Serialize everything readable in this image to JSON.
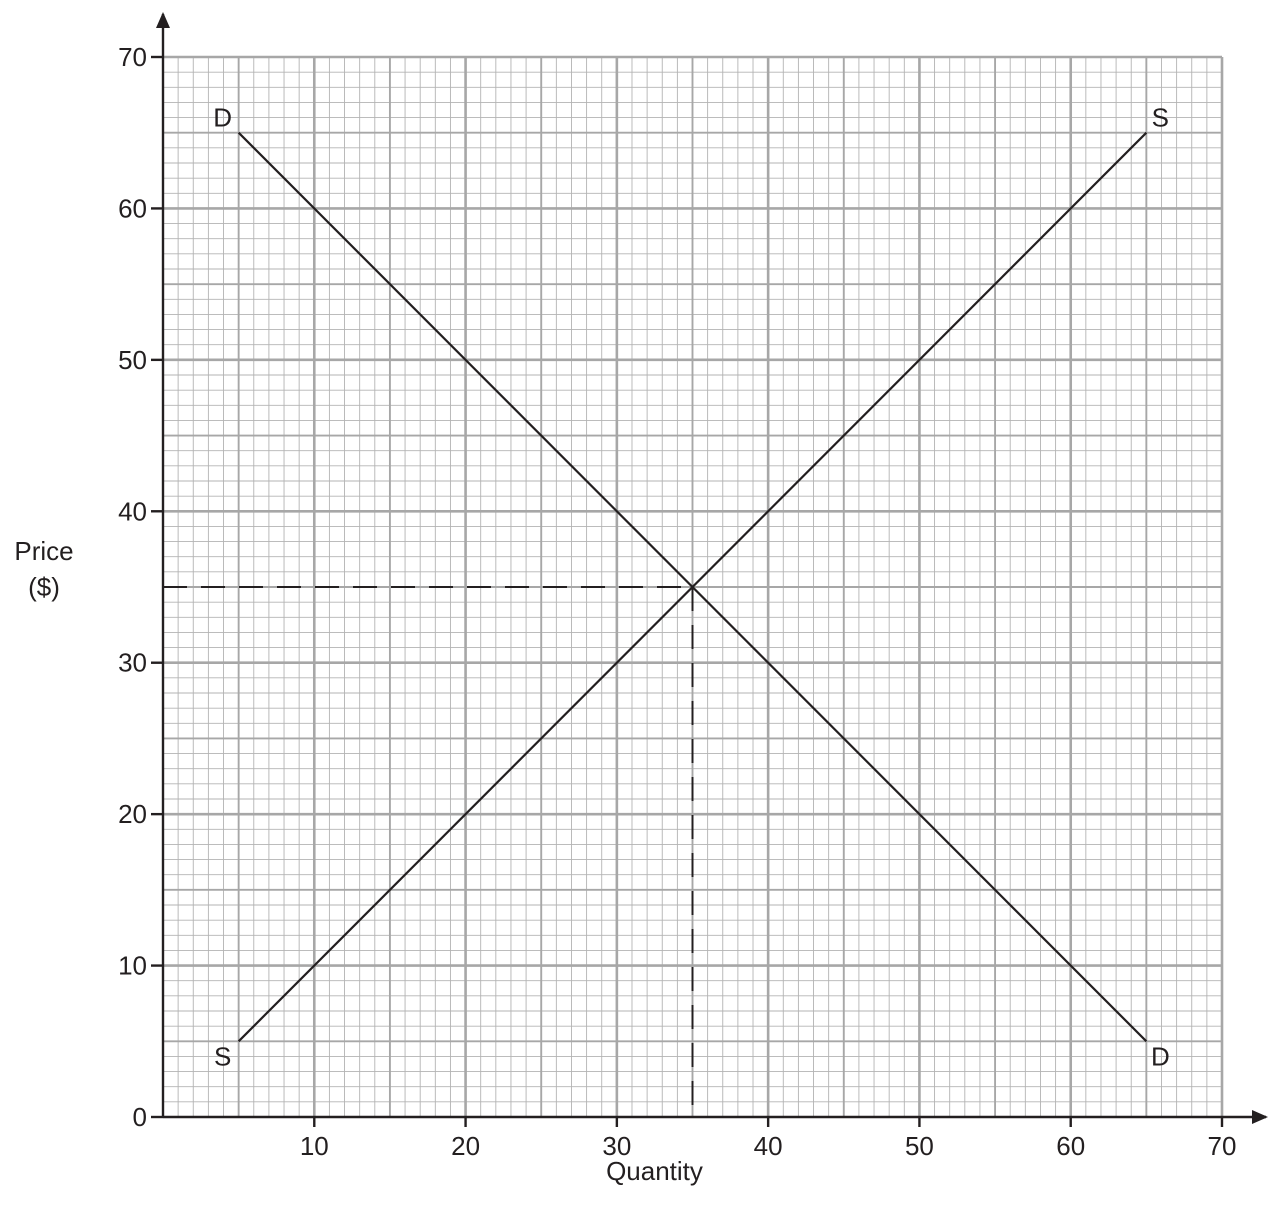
{
  "chart_data": {
    "type": "line",
    "title": "",
    "xlabel": "Quantity",
    "ylabel_lines": [
      "Price",
      "($)"
    ],
    "xlim": [
      0,
      70
    ],
    "ylim": [
      0,
      70
    ],
    "x_ticks": [
      10,
      20,
      30,
      40,
      50,
      60,
      70
    ],
    "y_ticks": [
      0,
      10,
      20,
      30,
      40,
      50,
      60,
      70
    ],
    "x_tick_labels": [
      "10",
      "20",
      "30",
      "40",
      "50",
      "60",
      "70"
    ],
    "y_tick_labels": [
      "0",
      "10",
      "20",
      "30",
      "40",
      "50",
      "60",
      "70"
    ],
    "grid": true,
    "grid_minor_step": 1,
    "grid_mid_step": 5,
    "grid_major_step": 10,
    "series": [
      {
        "name": "D",
        "points": [
          [
            5,
            65
          ],
          [
            65,
            5
          ]
        ],
        "end_labels": [
          "D",
          "D"
        ],
        "color": "#231f20"
      },
      {
        "name": "S",
        "points": [
          [
            5,
            5
          ],
          [
            65,
            65
          ]
        ],
        "end_labels": [
          "S",
          "S"
        ],
        "color": "#231f20"
      }
    ],
    "guides": {
      "equilibrium": [
        35,
        35
      ],
      "style": "dashed"
    },
    "colors": {
      "ink": "#231f20",
      "grid_minor": "#b3b3b3",
      "grid_major": "#a7a7a7",
      "background": "#ffffff"
    }
  }
}
